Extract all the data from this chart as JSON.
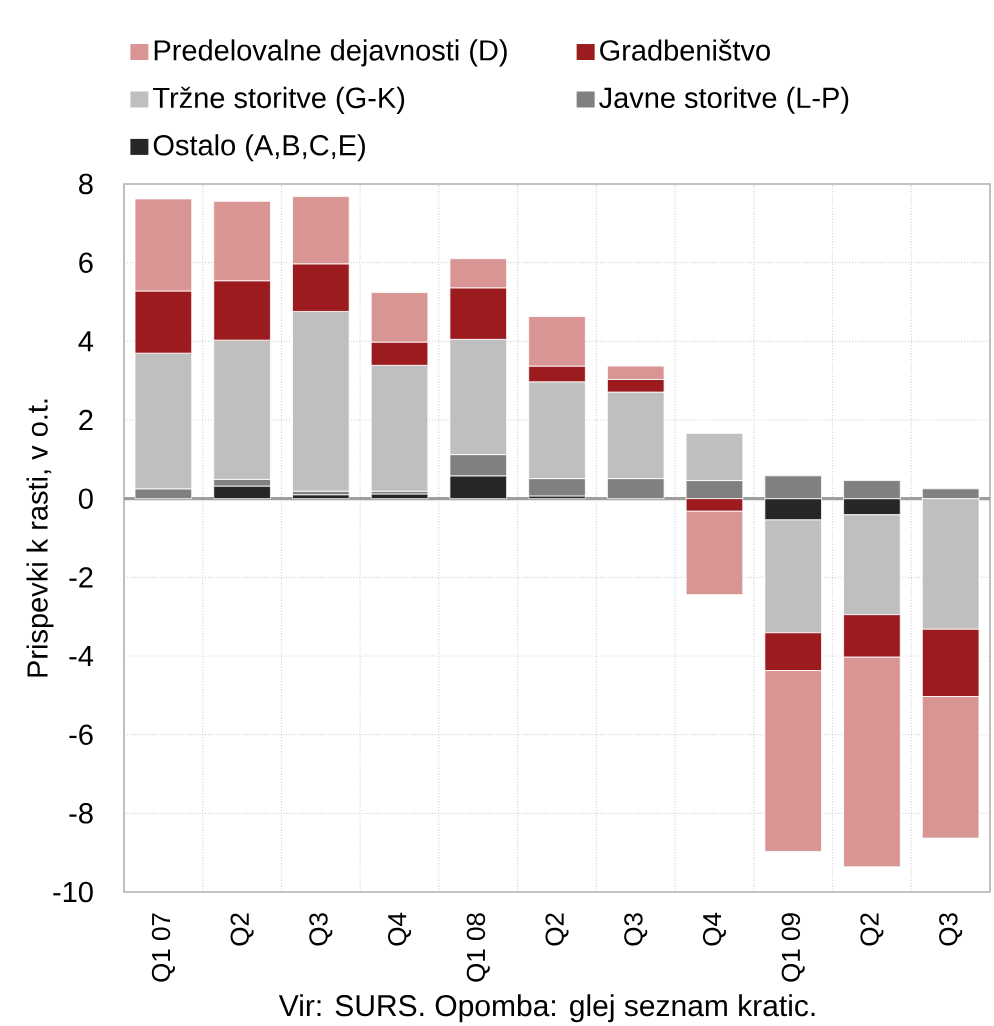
{
  "chart_data": {
    "type": "bar",
    "stacked": true,
    "categories": [
      "Q1 07",
      "Q2",
      "Q3",
      "Q4",
      "Q1 08",
      "Q2",
      "Q3",
      "Q4",
      "Q1 09",
      "Q2",
      "Q3"
    ],
    "ylabel": "Prispevki k rasti, v o.t.",
    "ylim": [
      -10,
      8
    ],
    "yticks": [
      -10,
      -8,
      -6,
      -4,
      -2,
      0,
      2,
      4,
      6,
      8
    ],
    "grid": true,
    "legend": "top",
    "series": [
      {
        "name": "Ostalo (A,B,C,E)",
        "color": "#262626",
        "values": [
          0,
          0.32,
          0.1,
          0.12,
          0.58,
          0.07,
          0,
          0,
          -0.54,
          -0.41,
          0
        ]
      },
      {
        "name": "Javne storitve (L-P)",
        "color": "#808080",
        "values": [
          0.25,
          0.17,
          0.09,
          0.07,
          0.54,
          0.44,
          0.51,
          0.46,
          0.58,
          0.46,
          0.25
        ]
      },
      {
        "name": "Tržne storitve (G-K)",
        "color": "#bfbfbf",
        "values": [
          3.45,
          3.54,
          4.57,
          3.2,
          2.93,
          2.46,
          2.2,
          1.2,
          -2.87,
          -2.54,
          -3.32
        ]
      },
      {
        "name": "Gradbeništvo",
        "color": "#9b1b1f",
        "values": [
          1.58,
          1.51,
          1.21,
          0.59,
          1.31,
          0.4,
          0.32,
          -0.32,
          -0.96,
          -1.08,
          -1.71
        ]
      },
      {
        "name": "Predelovalne dejavnosti (D)",
        "color": "#d99594",
        "values": [
          2.34,
          2.02,
          1.71,
          1.26,
          0.74,
          1.26,
          0.34,
          -2.12,
          -4.6,
          -5.33,
          -3.6
        ]
      }
    ],
    "annotations": [
      "Vir: SURS. Opomba: glej seznam kratic."
    ]
  }
}
